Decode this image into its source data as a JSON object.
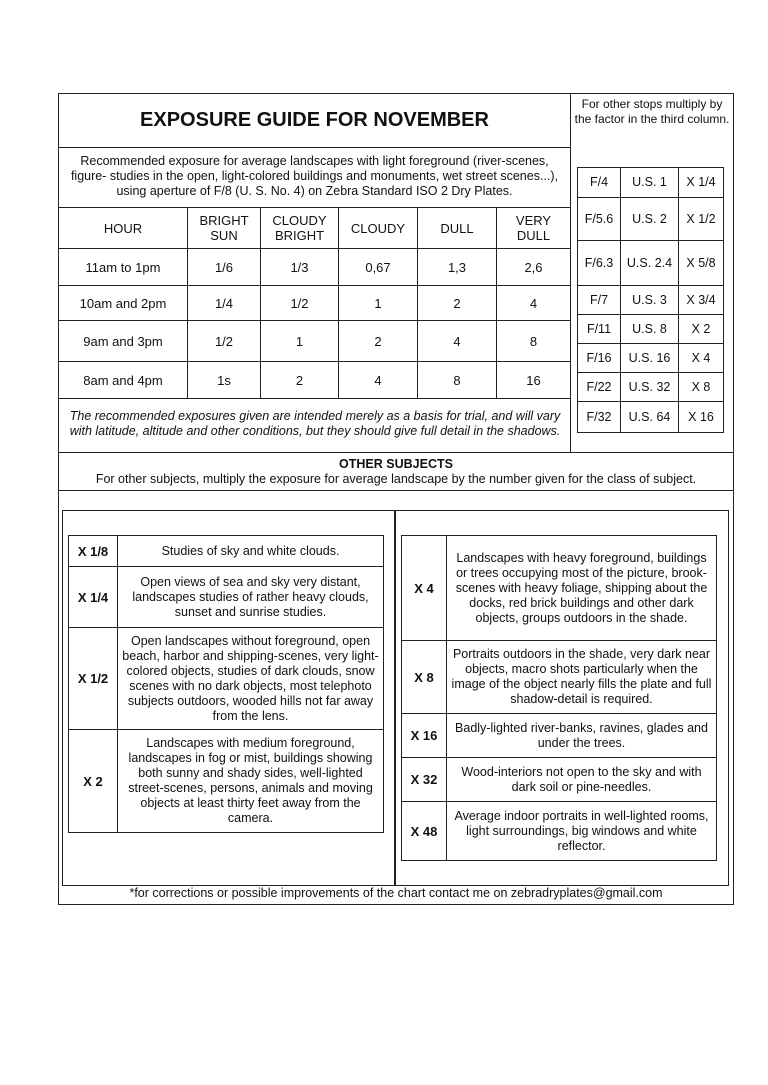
{
  "title": "EXPOSURE GUIDE FOR NOVEMBER",
  "stops_note": "For other stops multiply by the factor in the third column.",
  "description": "Recommended exposure for average landscapes with light foreground (river-scenes, figure- studies in the open, light-colored buildings and monuments, wet street scenes...), using aperture of F/8 (U. S. No. 4) on Zebra Standard ISO 2 Dry Plates.",
  "exposure_table": {
    "headers": [
      "HOUR",
      "BRIGHT SUN",
      "CLOUDY BRIGHT",
      "CLOUDY",
      "DULL",
      "VERY DULL"
    ],
    "rows": [
      [
        "11am to 1pm",
        "1/6",
        "1/3",
        "0,67",
        "1,3",
        "2,6"
      ],
      [
        "10am and 2pm",
        "1/4",
        "1/2",
        "1",
        "2",
        "4"
      ],
      [
        "9am and 3pm",
        "1/2",
        "1",
        "2",
        "4",
        "8"
      ],
      [
        "8am and 4pm",
        "1s",
        "2",
        "4",
        "8",
        "16"
      ]
    ]
  },
  "stops_table": [
    [
      "F/4",
      "U.S. 1",
      "X 1/4"
    ],
    [
      "F/5.6",
      "U.S. 2",
      "X 1/2"
    ],
    [
      "F/6.3",
      "U.S. 2.4",
      "X 5/8"
    ],
    [
      "F/7",
      "U.S. 3",
      "X 3/4"
    ],
    [
      "F/11",
      "U.S. 8",
      "X 2"
    ],
    [
      "F/16",
      "U.S. 16",
      "X 4"
    ],
    [
      "F/22",
      "U.S. 32",
      "X 8"
    ],
    [
      "F/32",
      "U.S. 64",
      "X 16"
    ]
  ],
  "trial_note": "The recommended exposures given are intended merely as a basis for trial, and will vary with latitude, altitude and other conditions, but they should give full detail in the shadows.",
  "other_subjects": {
    "heading": "OTHER SUBJECTS",
    "subheading": "For other subjects, multiply the exposure for average landscape by the number given for the class of subject.",
    "left": [
      [
        "X 1/8",
        "Studies of sky and white clouds."
      ],
      [
        "X 1/4",
        "Open views of sea and sky very distant, landscapes studies of rather heavy clouds, sunset and sunrise studies."
      ],
      [
        "X 1/2",
        "Open landscapes without foreground, open beach, harbor and shipping-scenes, very light-colored objects, studies of dark clouds, snow scenes with no dark objects, most telephoto subjects outdoors, wooded hills not far away from the lens."
      ],
      [
        "X 2",
        "Landscapes with medium foreground, landscapes in fog or mist, buildings showing both sunny and shady sides, well-lighted street-scenes, persons, animals and moving objects at least thirty feet away from the camera."
      ]
    ],
    "right": [
      [
        "X 4",
        "Landscapes with heavy foreground, buildings or trees occupying most of the picture, brook-scenes with heavy foliage, shipping about the docks, red brick buildings and other dark objects, groups outdoors in the shade."
      ],
      [
        "X 8",
        "Portraits outdoors in the shade, very dark near objects, macro shots particularly when the image of the object nearly fills the plate and full shadow-detail is required."
      ],
      [
        "X 16",
        "Badly-lighted river-banks, ravines, glades and under the trees."
      ],
      [
        "X 32",
        "Wood-interiors not open to the sky and with dark soil or pine-needles."
      ],
      [
        "X 48",
        "Average indoor portraits in well-lighted rooms, light surroundings, big windows and white reflector."
      ]
    ]
  },
  "footer": "*for corrections or possible improvements of the chart contact me on zebradryplates@gmail.com"
}
